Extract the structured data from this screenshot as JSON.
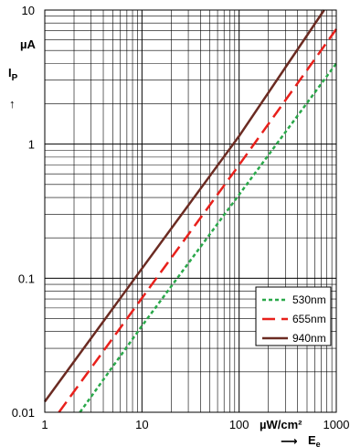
{
  "chart_data": {
    "type": "line",
    "x_scale": "log",
    "y_scale": "log",
    "xlim": [
      1,
      1000
    ],
    "ylim": [
      0.01,
      10
    ],
    "x_ticks": [
      "1",
      "10",
      "100",
      "1000"
    ],
    "y_ticks": [
      "0.01",
      "0.1",
      "1",
      "10"
    ],
    "ylabel": "I",
    "ylabel_sub": "P",
    "y_unit": "µA",
    "y_arrow": "↑",
    "x_unit": "µW/cm²",
    "xlabel": "E",
    "xlabel_sub": "e",
    "x_arrow": "⟶",
    "grid": true,
    "legend_position": "bottom-right",
    "series": [
      {
        "name": "530nm",
        "color": "#2aa84a",
        "dash": "dashed-fine",
        "x": [
          2.3,
          10,
          100,
          1000
        ],
        "y": [
          0.01,
          0.044,
          0.42,
          4.0
        ]
      },
      {
        "name": "655nm",
        "color": "#e8201b",
        "dash": "dashed-long",
        "x": [
          1.4,
          10,
          100,
          1000
        ],
        "y": [
          0.01,
          0.071,
          0.7,
          7.2
        ]
      },
      {
        "name": "940nm",
        "color": "#6b2b22",
        "dash": "solid",
        "x": [
          1,
          10,
          100,
          750
        ],
        "y": [
          0.012,
          0.118,
          1.15,
          10
        ]
      }
    ]
  }
}
